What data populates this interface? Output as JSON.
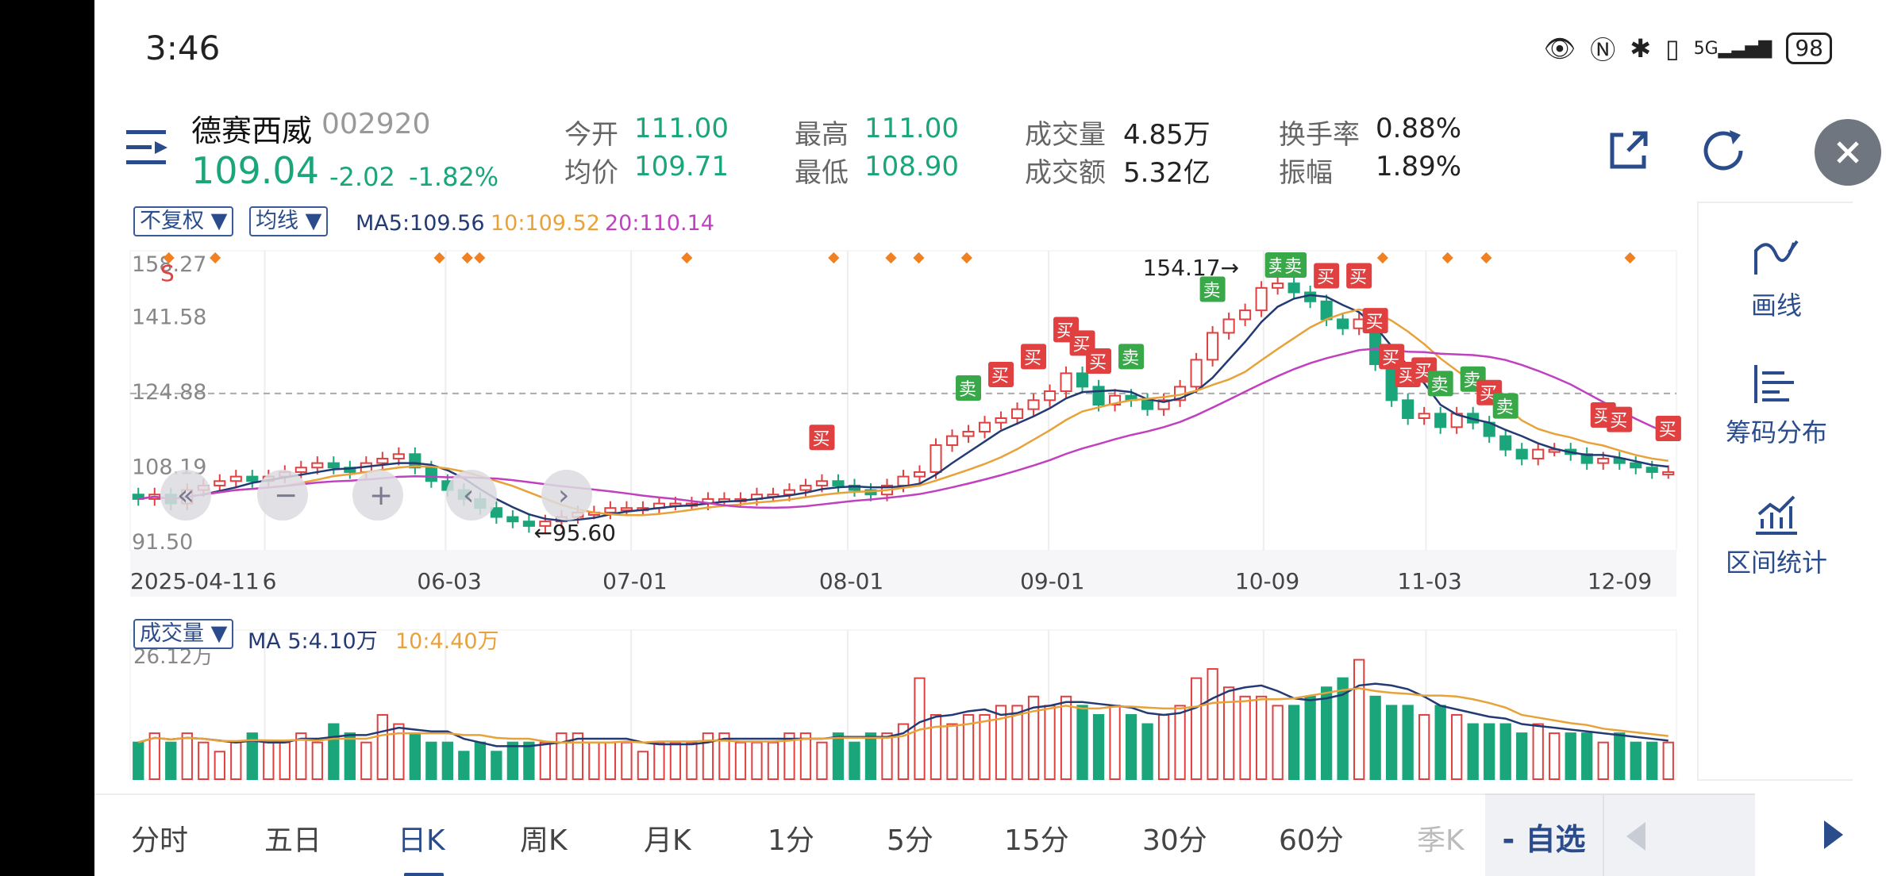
{
  "status": {
    "time": "3:46",
    "battery": "98",
    "network": "5G"
  },
  "stock": {
    "name": "德赛西威",
    "code": "002920",
    "price": "109.04",
    "change": "-2.02",
    "change_pct": "-1.82%",
    "stats": [
      {
        "label": "今开",
        "value": "111.00"
      },
      {
        "label": "均价",
        "value": "109.71"
      },
      {
        "label": "最高",
        "value": "111.00"
      },
      {
        "label": "最低",
        "value": "108.90"
      },
      {
        "label": "成交量",
        "value": "4.85万"
      },
      {
        "label": "成交额",
        "value": "5.32亿"
      },
      {
        "label": "换手率",
        "value": "0.88%"
      },
      {
        "label": "振幅",
        "value": "1.89%"
      }
    ]
  },
  "chart_toolbar": {
    "adjust": "不复权 ▼",
    "indicator": "均线 ▼",
    "ma5": "MA5:109.56",
    "ma10": "10:109.52",
    "ma20": "20:110.14"
  },
  "vol_toolbar": {
    "label": "成交量 ▼",
    "ma5": "MA 5:4.10万",
    "ma10": "10:4.40万"
  },
  "right_panel": [
    {
      "label": "画线",
      "icon": "draw-line-icon"
    },
    {
      "label": "筹码分布",
      "icon": "chip-distribution-icon"
    },
    {
      "label": "区间统计",
      "icon": "range-stats-icon"
    }
  ],
  "tabs": [
    "分时",
    "五日",
    "日K",
    "周K",
    "月K",
    "1分",
    "5分",
    "15分",
    "30分",
    "60分",
    "季K"
  ],
  "active_tab": "日K",
  "watchlist_button": "- 自选",
  "colors": {
    "up": "#e04040",
    "down": "#1aa57a",
    "ma5": "#233a73",
    "ma10": "#e8a23a",
    "ma20": "#c040c0",
    "accent": "#2b4c8c"
  },
  "chart_data": {
    "type": "candlestick",
    "y_ticks": [
      "158.27",
      "141.58",
      "124.88",
      "108.19",
      "91.50"
    ],
    "ylim": [
      91.5,
      158.27
    ],
    "x_ticks": [
      "2025-04-11",
      "6",
      "06-03",
      "07-01",
      "08-01",
      "09-01",
      "10-09",
      "11-03",
      "12-09"
    ],
    "annotations": {
      "high": "154.17→",
      "low": "←95.60",
      "signal": "S"
    },
    "reference_line": 126.5,
    "close": [
      103,
      104,
      102,
      105,
      106,
      107,
      108,
      107,
      108,
      109,
      110,
      111,
      110,
      109,
      111,
      112,
      113,
      110,
      107,
      105,
      103,
      101,
      99,
      98,
      97,
      98,
      99,
      100,
      100,
      101,
      101,
      101,
      102,
      102,
      102,
      103,
      103,
      103,
      104,
      104,
      105,
      106,
      107,
      106,
      105,
      104,
      106,
      108,
      109,
      115,
      117,
      118,
      120,
      121,
      123,
      125,
      127,
      131,
      128,
      124,
      126,
      125,
      123,
      125,
      128,
      134,
      140,
      143,
      145,
      150,
      151,
      149,
      147,
      143,
      141,
      143,
      133,
      125,
      121,
      122,
      119,
      122,
      120,
      117,
      114,
      112,
      114,
      114,
      113,
      111,
      112,
      111,
      110,
      109,
      109
    ],
    "volume_peak_label": "26.12万",
    "volume": [
      4,
      5,
      4,
      5,
      4,
      3,
      4,
      5,
      4,
      4,
      5,
      4,
      6,
      5,
      4,
      7,
      6,
      5,
      4,
      4,
      3,
      4,
      3,
      4,
      4,
      4,
      5,
      5,
      4,
      4,
      4,
      3,
      4,
      4,
      4,
      5,
      5,
      4,
      4,
      4,
      5,
      5,
      4,
      5,
      4,
      5,
      5,
      6,
      11,
      7,
      6,
      7,
      7,
      8,
      8,
      9,
      8,
      9,
      8,
      7,
      8,
      7,
      6,
      7,
      8,
      11,
      12,
      10,
      9,
      9,
      8,
      8,
      9,
      10,
      11,
      13,
      9,
      8,
      8,
      7,
      8,
      7,
      6,
      6,
      6,
      5,
      6,
      5,
      5,
      5,
      4,
      5,
      4,
      4,
      4
    ]
  }
}
